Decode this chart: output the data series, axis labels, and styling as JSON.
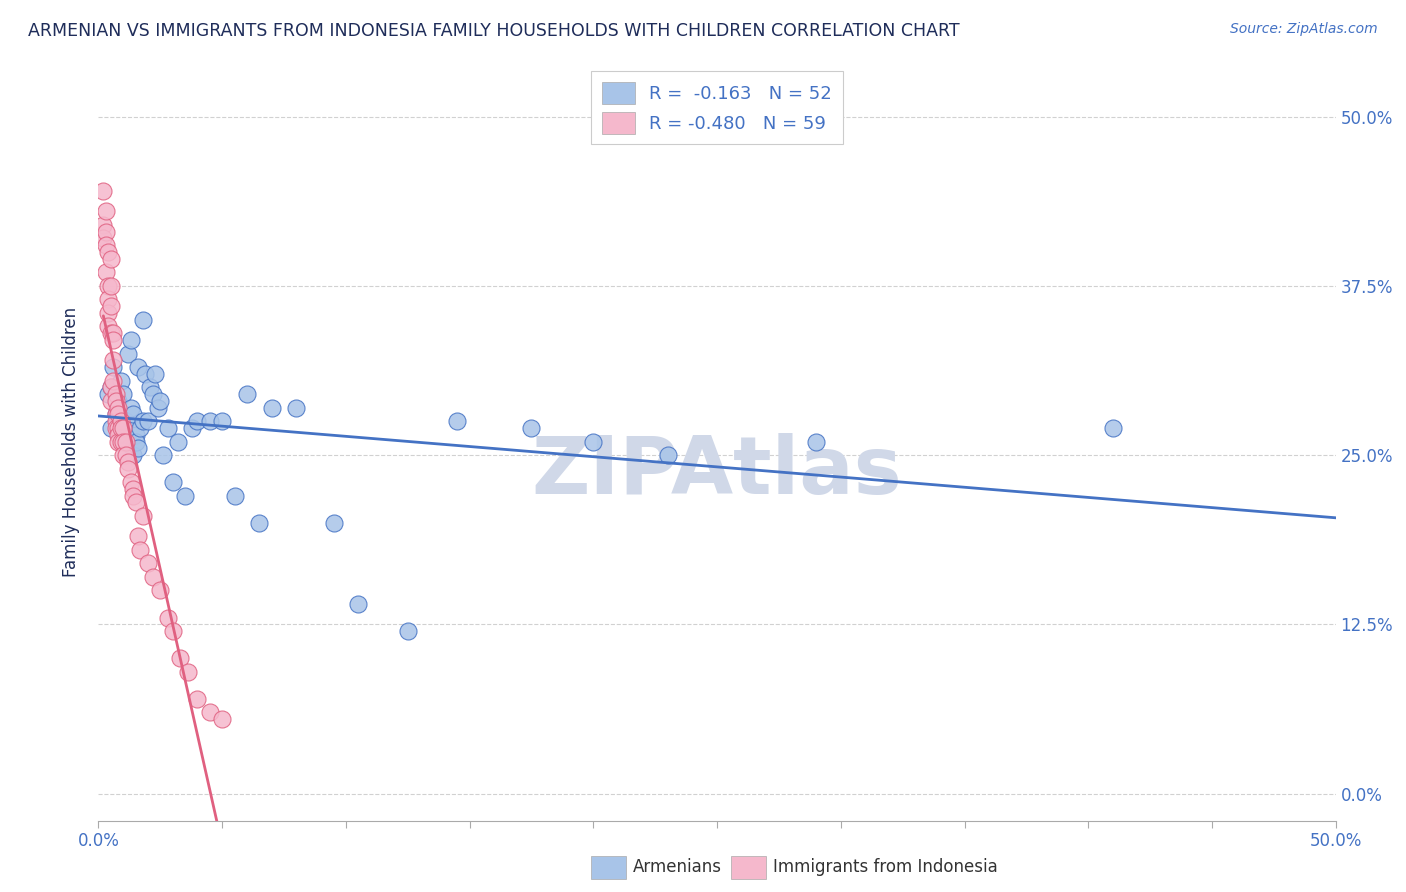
{
  "title": "ARMENIAN VS IMMIGRANTS FROM INDONESIA FAMILY HOUSEHOLDS WITH CHILDREN CORRELATION CHART",
  "source": "Source: ZipAtlas.com",
  "ylabel": "Family Households with Children",
  "ytick_labels": [
    "0.0%",
    "12.5%",
    "25.0%",
    "37.5%",
    "50.0%"
  ],
  "ytick_values": [
    0.0,
    0.125,
    0.25,
    0.375,
    0.5
  ],
  "xlim": [
    0.0,
    0.5
  ],
  "ylim": [
    -0.02,
    0.54
  ],
  "legend_r_blue": "R =  -0.163",
  "legend_n_blue": "N = 52",
  "legend_r_pink": "R = -0.480",
  "legend_n_pink": "N = 59",
  "blue_color": "#a8c4e8",
  "pink_color": "#f5b8cc",
  "blue_line_color": "#4472c4",
  "pink_line_color": "#e06080",
  "title_color": "#1f2d5a",
  "axis_label_color": "#4472c4",
  "grid_color": "#cccccc",
  "watermark_color": "#d0d8e8",
  "armenians_x": [
    0.004,
    0.005,
    0.005,
    0.006,
    0.007,
    0.008,
    0.009,
    0.01,
    0.01,
    0.011,
    0.012,
    0.013,
    0.013,
    0.014,
    0.014,
    0.015,
    0.015,
    0.016,
    0.016,
    0.017,
    0.018,
    0.018,
    0.019,
    0.02,
    0.021,
    0.022,
    0.023,
    0.024,
    0.025,
    0.026,
    0.028,
    0.03,
    0.032,
    0.035,
    0.038,
    0.04,
    0.045,
    0.05,
    0.055,
    0.06,
    0.065,
    0.07,
    0.08,
    0.095,
    0.105,
    0.125,
    0.145,
    0.175,
    0.2,
    0.23,
    0.29,
    0.41
  ],
  "armenians_y": [
    0.295,
    0.3,
    0.27,
    0.315,
    0.28,
    0.29,
    0.305,
    0.295,
    0.265,
    0.275,
    0.325,
    0.335,
    0.285,
    0.25,
    0.28,
    0.265,
    0.26,
    0.315,
    0.255,
    0.27,
    0.35,
    0.275,
    0.31,
    0.275,
    0.3,
    0.295,
    0.31,
    0.285,
    0.29,
    0.25,
    0.27,
    0.23,
    0.26,
    0.22,
    0.27,
    0.275,
    0.275,
    0.275,
    0.22,
    0.295,
    0.2,
    0.285,
    0.285,
    0.2,
    0.14,
    0.12,
    0.275,
    0.27,
    0.26,
    0.25,
    0.26,
    0.27
  ],
  "indonesia_x": [
    0.002,
    0.002,
    0.002,
    0.003,
    0.003,
    0.003,
    0.003,
    0.004,
    0.004,
    0.004,
    0.004,
    0.004,
    0.005,
    0.005,
    0.005,
    0.005,
    0.005,
    0.005,
    0.006,
    0.006,
    0.006,
    0.006,
    0.007,
    0.007,
    0.007,
    0.007,
    0.007,
    0.008,
    0.008,
    0.008,
    0.008,
    0.008,
    0.009,
    0.009,
    0.009,
    0.01,
    0.01,
    0.01,
    0.011,
    0.011,
    0.012,
    0.012,
    0.013,
    0.014,
    0.014,
    0.015,
    0.016,
    0.017,
    0.018,
    0.02,
    0.022,
    0.025,
    0.028,
    0.03,
    0.033,
    0.036,
    0.04,
    0.045,
    0.05
  ],
  "indonesia_y": [
    0.445,
    0.42,
    0.41,
    0.43,
    0.415,
    0.405,
    0.385,
    0.4,
    0.375,
    0.365,
    0.355,
    0.345,
    0.395,
    0.375,
    0.36,
    0.34,
    0.3,
    0.29,
    0.34,
    0.335,
    0.32,
    0.305,
    0.295,
    0.29,
    0.28,
    0.275,
    0.27,
    0.285,
    0.28,
    0.27,
    0.265,
    0.26,
    0.275,
    0.27,
    0.26,
    0.27,
    0.26,
    0.25,
    0.26,
    0.25,
    0.245,
    0.24,
    0.23,
    0.225,
    0.22,
    0.215,
    0.19,
    0.18,
    0.205,
    0.17,
    0.16,
    0.15,
    0.13,
    0.12,
    0.1,
    0.09,
    0.07,
    0.06,
    0.055
  ]
}
